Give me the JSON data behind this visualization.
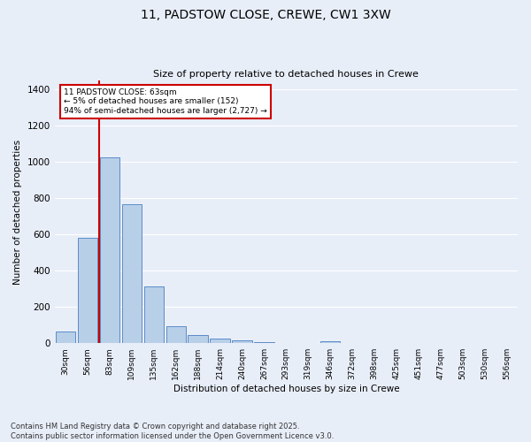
{
  "title": "11, PADSTOW CLOSE, CREWE, CW1 3XW",
  "subtitle": "Size of property relative to detached houses in Crewe",
  "xlabel": "Distribution of detached houses by size in Crewe",
  "ylabel": "Number of detached properties",
  "bar_labels": [
    "30sqm",
    "56sqm",
    "83sqm",
    "109sqm",
    "135sqm",
    "162sqm",
    "188sqm",
    "214sqm",
    "240sqm",
    "267sqm",
    "293sqm",
    "319sqm",
    "346sqm",
    "372sqm",
    "398sqm",
    "425sqm",
    "451sqm",
    "477sqm",
    "503sqm",
    "530sqm",
    "556sqm"
  ],
  "bar_values": [
    65,
    580,
    1025,
    765,
    315,
    95,
    45,
    25,
    15,
    8,
    0,
    0,
    12,
    0,
    0,
    0,
    0,
    0,
    0,
    0,
    0
  ],
  "bar_color": "#b8cfe8",
  "bar_edge_color": "#5b8cc8",
  "vline_x": 0.5,
  "annotation_line1": "11 PADSTOW CLOSE: 63sqm",
  "annotation_line2": "← 5% of detached houses are smaller (152)",
  "annotation_line3": "94% of semi-detached houses are larger (2,727) →",
  "vline_color": "#cc0000",
  "ylim": [
    0,
    1450
  ],
  "yticks": [
    0,
    200,
    400,
    600,
    800,
    1000,
    1200,
    1400
  ],
  "background_color": "#e8eef8",
  "grid_color": "#ffffff",
  "footer_line1": "Contains HM Land Registry data © Crown copyright and database right 2025.",
  "footer_line2": "Contains public sector information licensed under the Open Government Licence v3.0."
}
